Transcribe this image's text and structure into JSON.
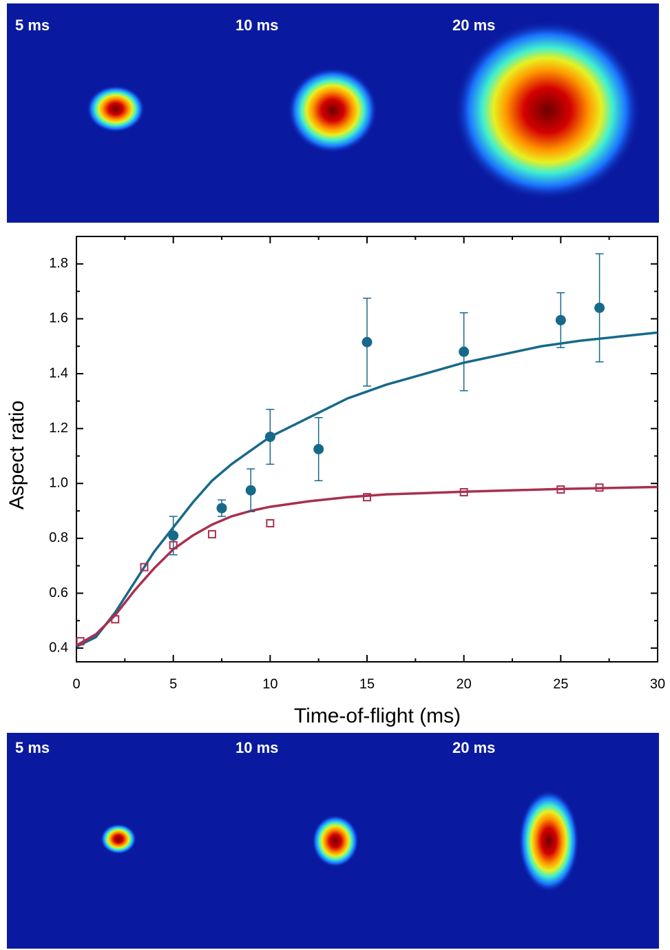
{
  "images": {
    "top": [
      "5 ms",
      "10 ms",
      "20 ms"
    ],
    "bottom": [
      "5 ms",
      "10 ms",
      "20 ms"
    ]
  },
  "chart_data": {
    "type": "scatter",
    "xlabel": "Time-of-flight (ms)",
    "ylabel": "Aspect ratio",
    "xlim": [
      0,
      30
    ],
    "ylim": [
      0.35,
      1.9
    ],
    "xticks": [
      0,
      5,
      10,
      15,
      20,
      25,
      30
    ],
    "yticks": [
      {
        "value": 0.4,
        "label": "0.4"
      },
      {
        "value": 0.6,
        "label": "0.6"
      },
      {
        "value": 0.8,
        "label": "0.8"
      },
      {
        "value": 1.0,
        "label": "1.0"
      },
      {
        "value": 1.2,
        "label": "1.2"
      },
      {
        "value": 1.4,
        "label": "1.4"
      },
      {
        "value": 1.6,
        "label": "1.6"
      },
      {
        "value": 1.8,
        "label": "1.8"
      }
    ],
    "xminor": [
      2.5,
      7.5,
      12.5,
      17.5,
      22.5,
      27.5
    ],
    "yminor": [
      0.5,
      0.7,
      0.9,
      1.1,
      1.3,
      1.5,
      1.7
    ],
    "series": [
      {
        "color": "#17698a",
        "marker": "circle",
        "x": [
          5,
          7.5,
          9,
          10,
          12.5,
          15,
          20,
          25,
          27
        ],
        "values": [
          0.81,
          0.91,
          0.975,
          1.17,
          1.125,
          1.515,
          1.48,
          1.595,
          1.64
        ],
        "errors": [
          0.07,
          0.03,
          0.078,
          0.1,
          0.115,
          0.16,
          0.142,
          0.1,
          0.197
        ]
      },
      {
        "color": "#a8304f",
        "marker": "square",
        "x": [
          0.2,
          2,
          3.5,
          5,
          7,
          10,
          15,
          20,
          25,
          27
        ],
        "values": [
          0.425,
          0.505,
          0.695,
          0.775,
          0.815,
          0.855,
          0.95,
          0.968,
          0.978,
          0.985
        ]
      }
    ],
    "fits": [
      {
        "color": "#17698a",
        "x": [
          0,
          1,
          2,
          3,
          4,
          5,
          6,
          7,
          8,
          9,
          10,
          12,
          14,
          16,
          18,
          20,
          22,
          24,
          26,
          28,
          30
        ],
        "values": [
          0.405,
          0.44,
          0.53,
          0.64,
          0.75,
          0.84,
          0.93,
          1.01,
          1.07,
          1.12,
          1.17,
          1.24,
          1.31,
          1.36,
          1.4,
          1.44,
          1.47,
          1.5,
          1.52,
          1.535,
          1.55
        ]
      },
      {
        "color": "#a8304f",
        "x": [
          0,
          1,
          2,
          3,
          4,
          5,
          6,
          7,
          8,
          9,
          10,
          12,
          14,
          16,
          18,
          20,
          25,
          30
        ],
        "values": [
          0.41,
          0.45,
          0.52,
          0.61,
          0.69,
          0.76,
          0.81,
          0.85,
          0.88,
          0.9,
          0.915,
          0.935,
          0.95,
          0.96,
          0.965,
          0.97,
          0.98,
          0.987
        ]
      }
    ]
  }
}
